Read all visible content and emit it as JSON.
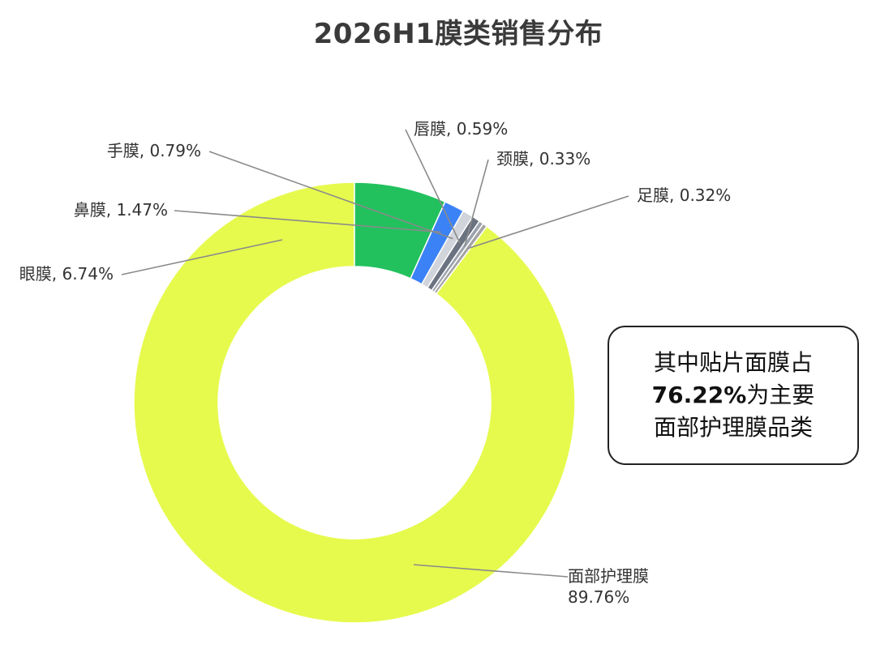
{
  "chart_data": {
    "type": "pie",
    "donut": true,
    "title": "2026H1膜类销售分布",
    "slices": [
      {
        "label": "面部护理膜",
        "value": 89.76,
        "display": "89.76%",
        "color": "#E6FA4D"
      },
      {
        "label": "眼膜",
        "value": 6.74,
        "display": "6.74%",
        "color": "#22C15E"
      },
      {
        "label": "鼻膜",
        "value": 1.47,
        "display": "1.47%",
        "color": "#3B82F6"
      },
      {
        "label": "手膜",
        "value": 0.79,
        "display": "0.79%",
        "color": "#D1D5DB"
      },
      {
        "label": "唇膜",
        "value": 0.59,
        "display": "0.59%",
        "color": "#6B7280"
      },
      {
        "label": "颈膜",
        "value": 0.33,
        "display": "0.33%",
        "color": "#9CA3AF"
      },
      {
        "label": "足膜",
        "value": 0.32,
        "display": "0.32%",
        "color": "#A3A3A3"
      }
    ]
  },
  "callout": {
    "line1": "其中贴片面膜占",
    "line2_value": "76.22%",
    "line2_rest": "为主要",
    "line3": "面部护理膜品类"
  }
}
